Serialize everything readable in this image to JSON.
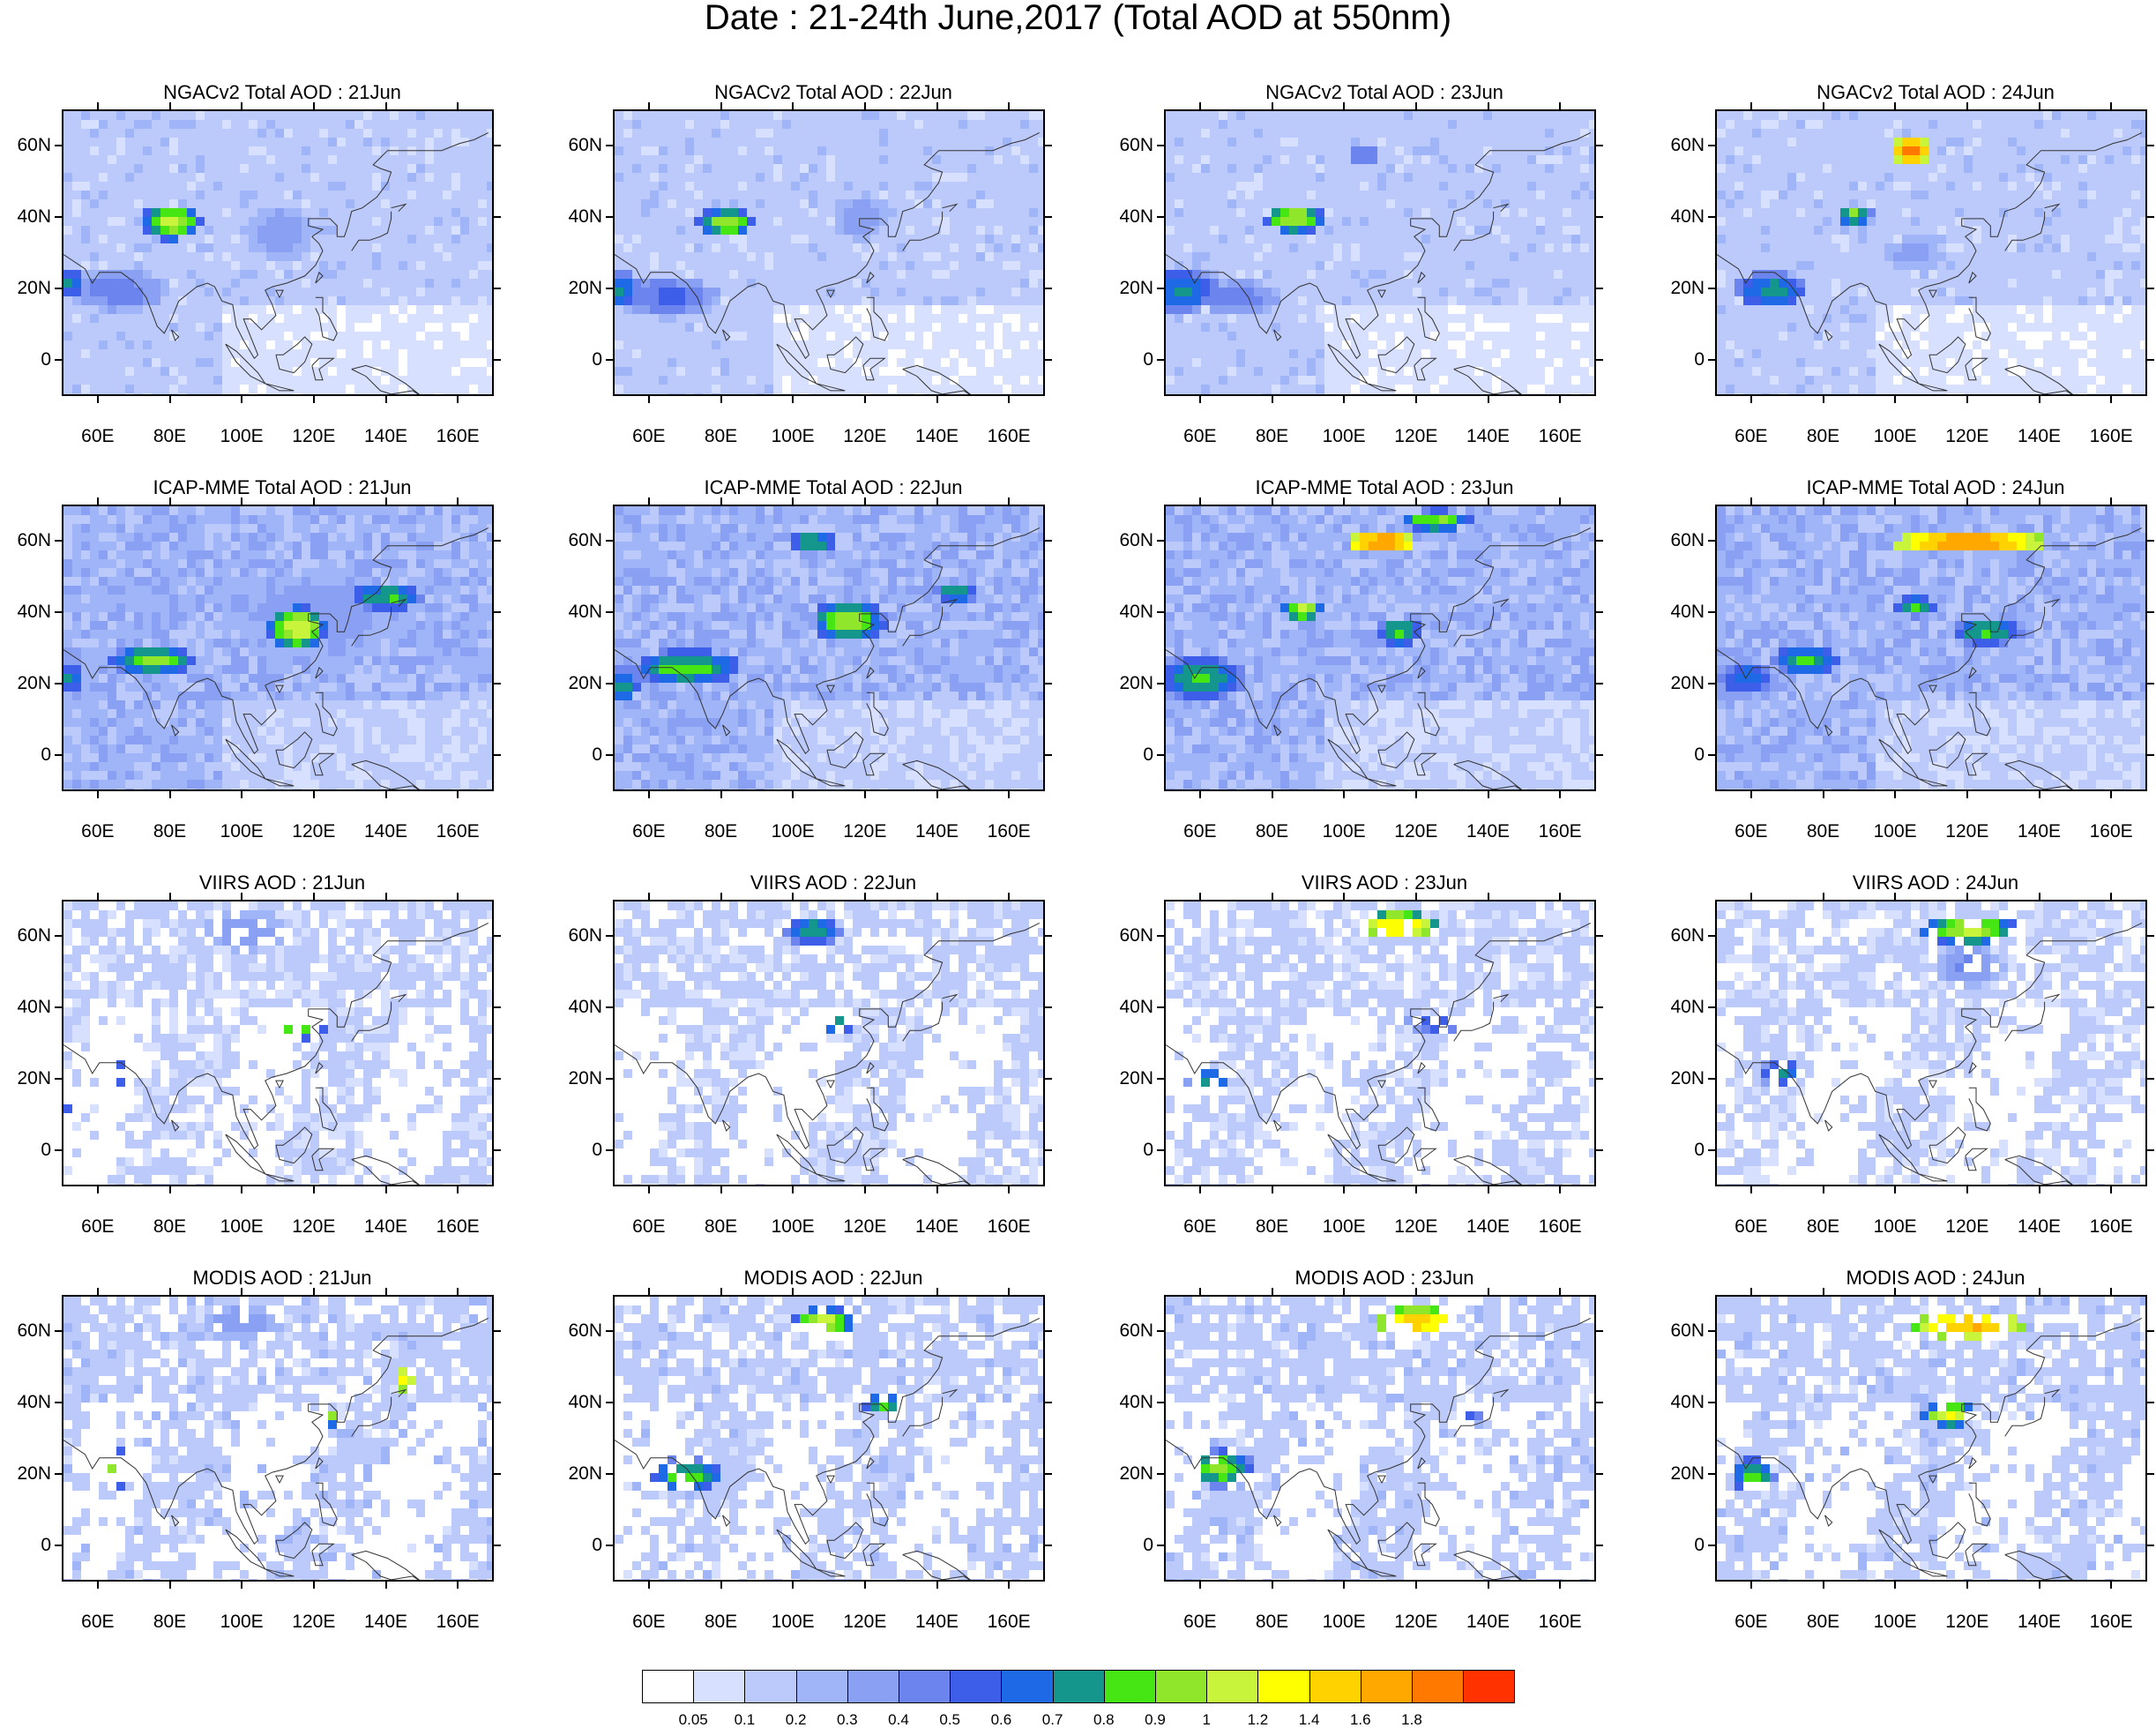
{
  "title": "Date : 21-24th June,2017 (Total AOD at 550nm)",
  "rows": [
    {
      "name": "ngac",
      "panels": [
        {
          "title": "NGACv2 Total AOD : 21Jun",
          "hotspots": [
            {
              "lon": 80,
              "lat": 39,
              "rx": 8,
              "ry": 5,
              "aod": 1.0
            },
            {
              "lon": 52,
              "lat": 22,
              "rx": 4,
              "ry": 4,
              "aod": 0.7
            },
            {
              "lon": 65,
              "lat": 20,
              "rx": 14,
              "ry": 6,
              "aod": 0.45
            },
            {
              "lon": 110,
              "lat": 36,
              "rx": 10,
              "ry": 8,
              "aod": 0.35
            }
          ],
          "background": 0.15
        },
        {
          "title": "NGACv2 Total AOD : 22Jun",
          "hotspots": [
            {
              "lon": 81,
              "lat": 39,
              "rx": 8,
              "ry": 4,
              "aod": 0.95
            },
            {
              "lon": 52,
              "lat": 20,
              "rx": 5,
              "ry": 5,
              "aod": 0.7
            },
            {
              "lon": 65,
              "lat": 18,
              "rx": 14,
              "ry": 6,
              "aod": 0.5
            },
            {
              "lon": 118,
              "lat": 40,
              "rx": 8,
              "ry": 6,
              "aod": 0.35
            }
          ],
          "background": 0.15
        },
        {
          "title": "NGACv2 Total AOD : 23Jun",
          "hotspots": [
            {
              "lon": 86,
              "lat": 40,
              "rx": 8,
              "ry": 4,
              "aod": 1.0
            },
            {
              "lon": 105,
              "lat": 58,
              "rx": 5,
              "ry": 3,
              "aod": 0.5
            },
            {
              "lon": 55,
              "lat": 20,
              "rx": 10,
              "ry": 6,
              "aod": 0.7
            },
            {
              "lon": 70,
              "lat": 18,
              "rx": 12,
              "ry": 5,
              "aod": 0.45
            }
          ],
          "background": 0.15
        },
        {
          "title": "NGACv2 Total AOD : 24Jun",
          "hotspots": [
            {
              "lon": 104,
              "lat": 59,
              "rx": 6,
              "ry": 4,
              "aod": 1.85
            },
            {
              "lon": 88,
              "lat": 41,
              "rx": 5,
              "ry": 3,
              "aod": 0.9
            },
            {
              "lon": 65,
              "lat": 20,
              "rx": 10,
              "ry": 5,
              "aod": 0.75
            },
            {
              "lon": 105,
              "lat": 30,
              "rx": 8,
              "ry": 5,
              "aod": 0.35
            }
          ],
          "background": 0.15
        }
      ]
    },
    {
      "name": "icap",
      "panels": [
        {
          "title": "ICAP-MME Total AOD : 21Jun",
          "hotspots": [
            {
              "lon": 115,
              "lat": 36,
              "rx": 8,
              "ry": 6,
              "aod": 1.05
            },
            {
              "lon": 75,
              "lat": 27,
              "rx": 12,
              "ry": 4,
              "aod": 0.9
            },
            {
              "lon": 140,
              "lat": 45,
              "rx": 10,
              "ry": 4,
              "aod": 0.8
            },
            {
              "lon": 52,
              "lat": 22,
              "rx": 4,
              "ry": 4,
              "aod": 0.7
            },
            {
              "lon": 120,
              "lat": 40,
              "rx": 25,
              "ry": 12,
              "aod": 0.35
            }
          ],
          "background": 0.25
        },
        {
          "title": "ICAP-MME Total AOD : 22Jun",
          "hotspots": [
            {
              "lon": 115,
              "lat": 38,
              "rx": 10,
              "ry": 6,
              "aod": 0.95
            },
            {
              "lon": 105,
              "lat": 60,
              "rx": 7,
              "ry": 3,
              "aod": 0.8
            },
            {
              "lon": 70,
              "lat": 25,
              "rx": 15,
              "ry": 5,
              "aod": 0.85
            },
            {
              "lon": 145,
              "lat": 46,
              "rx": 6,
              "ry": 3,
              "aod": 0.8
            },
            {
              "lon": 52,
              "lat": 20,
              "rx": 5,
              "ry": 5,
              "aod": 0.75
            }
          ],
          "background": 0.25
        },
        {
          "title": "ICAP-MME Total AOD : 23Jun",
          "hotspots": [
            {
              "lon": 110,
              "lat": 60,
              "rx": 10,
              "ry": 3,
              "aod": 1.85
            },
            {
              "lon": 125,
              "lat": 66,
              "rx": 10,
              "ry": 3,
              "aod": 0.9
            },
            {
              "lon": 88,
              "lat": 41,
              "rx": 6,
              "ry": 3,
              "aod": 1.0
            },
            {
              "lon": 115,
              "lat": 35,
              "rx": 6,
              "ry": 4,
              "aod": 0.85
            },
            {
              "lon": 60,
              "lat": 22,
              "rx": 12,
              "ry": 6,
              "aod": 0.8
            }
          ],
          "background": 0.25
        },
        {
          "title": "ICAP-MME Total AOD : 24Jun",
          "hotspots": [
            {
              "lon": 120,
              "lat": 60,
              "rx": 22,
              "ry": 3,
              "aod": 1.85
            },
            {
              "lon": 105,
              "lat": 42,
              "rx": 6,
              "ry": 3,
              "aod": 0.8
            },
            {
              "lon": 125,
              "lat": 35,
              "rx": 10,
              "ry": 4,
              "aod": 0.8
            },
            {
              "lon": 75,
              "lat": 27,
              "rx": 10,
              "ry": 4,
              "aod": 0.8
            },
            {
              "lon": 58,
              "lat": 22,
              "rx": 8,
              "ry": 5,
              "aod": 0.65
            }
          ],
          "background": 0.25
        }
      ]
    },
    {
      "name": "viirs",
      "panels": [
        {
          "title": "VIIRS AOD : 21Jun",
          "hotspots": [
            {
              "lon": 100,
              "lat": 62,
              "rx": 12,
              "ry": 6,
              "aod": 0.35
            },
            {
              "lon": 115,
              "lat": 35,
              "rx": 8,
              "ry": 4,
              "aod": 0.85
            },
            {
              "lon": 65,
              "lat": 22,
              "rx": 5,
              "ry": 3,
              "aod": 0.75
            },
            {
              "lon": 52,
              "lat": 12,
              "rx": 4,
              "ry": 4,
              "aod": 0.5
            }
          ],
          "background": 0.12
        },
        {
          "title": "VIIRS AOD : 22Jun",
          "hotspots": [
            {
              "lon": 105,
              "lat": 62,
              "rx": 8,
              "ry": 4,
              "aod": 0.75
            },
            {
              "lon": 112,
              "lat": 36,
              "rx": 4,
              "ry": 3,
              "aod": 0.8
            },
            {
              "lon": 55,
              "lat": 15,
              "rx": 4,
              "ry": 4,
              "aod": 0.55
            }
          ],
          "background": 0.12
        },
        {
          "title": "VIIRS AOD : 23Jun",
          "hotspots": [
            {
              "lon": 115,
              "lat": 63,
              "rx": 10,
              "ry": 4,
              "aod": 1.4
            },
            {
              "lon": 125,
              "lat": 36,
              "rx": 8,
              "ry": 3,
              "aod": 0.6
            },
            {
              "lon": 62,
              "lat": 20,
              "rx": 6,
              "ry": 4,
              "aod": 0.75
            }
          ],
          "background": 0.12
        },
        {
          "title": "VIIRS AOD : 24Jun",
          "hotspots": [
            {
              "lon": 120,
              "lat": 62,
              "rx": 14,
              "ry": 4,
              "aod": 1.0
            },
            {
              "lon": 120,
              "lat": 52,
              "rx": 10,
              "ry": 6,
              "aod": 0.4
            },
            {
              "lon": 68,
              "lat": 22,
              "rx": 6,
              "ry": 4,
              "aod": 0.7
            }
          ],
          "background": 0.12
        }
      ]
    },
    {
      "name": "modis",
      "panels": [
        {
          "title": "MODIS AOD : 21Jun",
          "hotspots": [
            {
              "lon": 100,
              "lat": 63,
              "rx": 12,
              "ry": 5,
              "aod": 0.35
            },
            {
              "lon": 120,
              "lat": 36,
              "rx": 6,
              "ry": 3,
              "aod": 1.3
            },
            {
              "lon": 65,
              "lat": 22,
              "rx": 8,
              "ry": 5,
              "aod": 0.95
            },
            {
              "lon": 145,
              "lat": 47,
              "rx": 3,
              "ry": 4,
              "aod": 1.3
            }
          ],
          "background": 0.15
        },
        {
          "title": "MODIS AOD : 22Jun",
          "hotspots": [
            {
              "lon": 108,
              "lat": 63,
              "rx": 8,
              "ry": 4,
              "aod": 1.05
            },
            {
              "lon": 70,
              "lat": 20,
              "rx": 10,
              "ry": 5,
              "aod": 0.85
            },
            {
              "lon": 125,
              "lat": 40,
              "rx": 6,
              "ry": 3,
              "aod": 0.8
            }
          ],
          "background": 0.15
        },
        {
          "title": "MODIS AOD : 23Jun",
          "hotspots": [
            {
              "lon": 120,
              "lat": 63,
              "rx": 12,
              "ry": 4,
              "aod": 1.5
            },
            {
              "lon": 65,
              "lat": 22,
              "rx": 10,
              "ry": 5,
              "aod": 0.9
            },
            {
              "lon": 135,
              "lat": 37,
              "rx": 5,
              "ry": 3,
              "aod": 0.5
            }
          ],
          "background": 0.15
        },
        {
          "title": "MODIS AOD : 24Jun",
          "hotspots": [
            {
              "lon": 120,
              "lat": 62,
              "rx": 16,
              "ry": 4,
              "aod": 1.6
            },
            {
              "lon": 115,
              "lat": 37,
              "rx": 8,
              "ry": 3,
              "aod": 1.2
            },
            {
              "lon": 60,
              "lat": 20,
              "rx": 6,
              "ry": 5,
              "aod": 0.85
            }
          ],
          "background": 0.15
        }
      ]
    }
  ],
  "axes": {
    "lon_range": [
      50,
      170
    ],
    "lat_range": [
      -10,
      70
    ],
    "x_ticks": [
      "60E",
      "80E",
      "100E",
      "120E",
      "140E",
      "160E"
    ],
    "x_tick_values": [
      60,
      80,
      100,
      120,
      140,
      160
    ],
    "y_ticks": [
      "0",
      "20N",
      "40N",
      "60N"
    ],
    "y_tick_values": [
      0,
      20,
      40,
      60
    ]
  },
  "colorbar": {
    "colors": [
      "#ffffff",
      "#d8e0ff",
      "#bcc9fb",
      "#a0b5f7",
      "#8aa0f2",
      "#6b84ee",
      "#3c5ee8",
      "#1e6ae6",
      "#14968c",
      "#46e614",
      "#8fe62a",
      "#c8f53c",
      "#ffff00",
      "#ffd200",
      "#ffa800",
      "#ff7800",
      "#ff3200"
    ],
    "labels": [
      "0.05",
      "0.1",
      "0.2",
      "0.3",
      "0.4",
      "0.5",
      "0.6",
      "0.7",
      "0.8",
      "0.9",
      "1",
      "1.2",
      "1.4",
      "1.6",
      "1.8"
    ],
    "thresholds": [
      0.05,
      0.1,
      0.2,
      0.3,
      0.4,
      0.5,
      0.6,
      0.7,
      0.8,
      0.9,
      1.0,
      1.2,
      1.4,
      1.6,
      1.8
    ]
  }
}
